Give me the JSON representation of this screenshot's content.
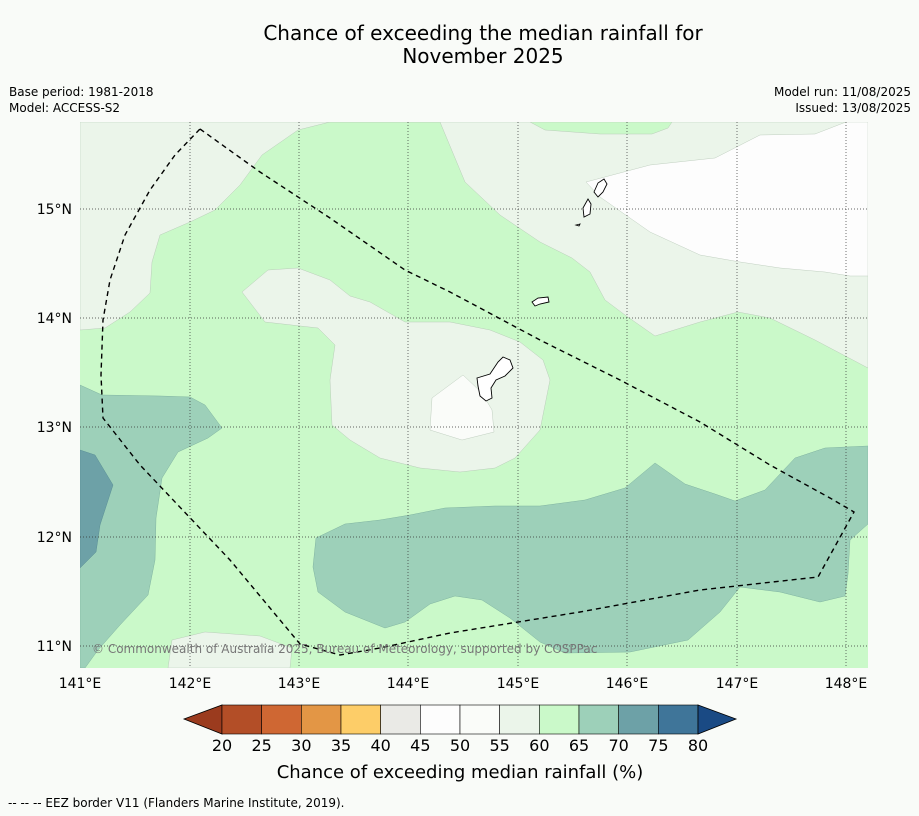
{
  "title": {
    "line1": "Chance of exceeding the median rainfall for",
    "line2": "November 2025"
  },
  "meta": {
    "base_period": "Base period: 1981-2018",
    "model": "Model: ACCESS-S2",
    "model_run": "Model run: 11/08/2025",
    "issued": "Issued: 13/08/2025"
  },
  "map": {
    "lat_labels": [
      "15°N",
      "14°N",
      "13°N",
      "12°N",
      "11°N"
    ],
    "lon_labels": [
      "141°E",
      "142°E",
      "143°E",
      "144°E",
      "145°E",
      "146°E",
      "147°E",
      "148°E"
    ],
    "copyright": "© Commonwealth of Australia 2025, Bureau of Meteorology, supported by COSPPac"
  },
  "colorbar": {
    "ticks": [
      "20",
      "25",
      "30",
      "35",
      "40",
      "45",
      "50",
      "55",
      "60",
      "65",
      "70",
      "75",
      "80"
    ],
    "colors": [
      "#b34e27",
      "#cf6733",
      "#e39645",
      "#fdcd68",
      "#eaeae6",
      "#fdfdfd",
      "#fafcf9",
      "#ebf5ea",
      "#caf9c9",
      "#9dd0b9",
      "#6da1a7",
      "#3f7599"
    ],
    "low_color": "#9b3b1e",
    "high_color": "#1a4a84",
    "label": "Chance of exceeding median rainfall (%)"
  },
  "legend_note": "--  --  -- EEZ border V11 (Flanders Marine Institute, 2019)."
}
